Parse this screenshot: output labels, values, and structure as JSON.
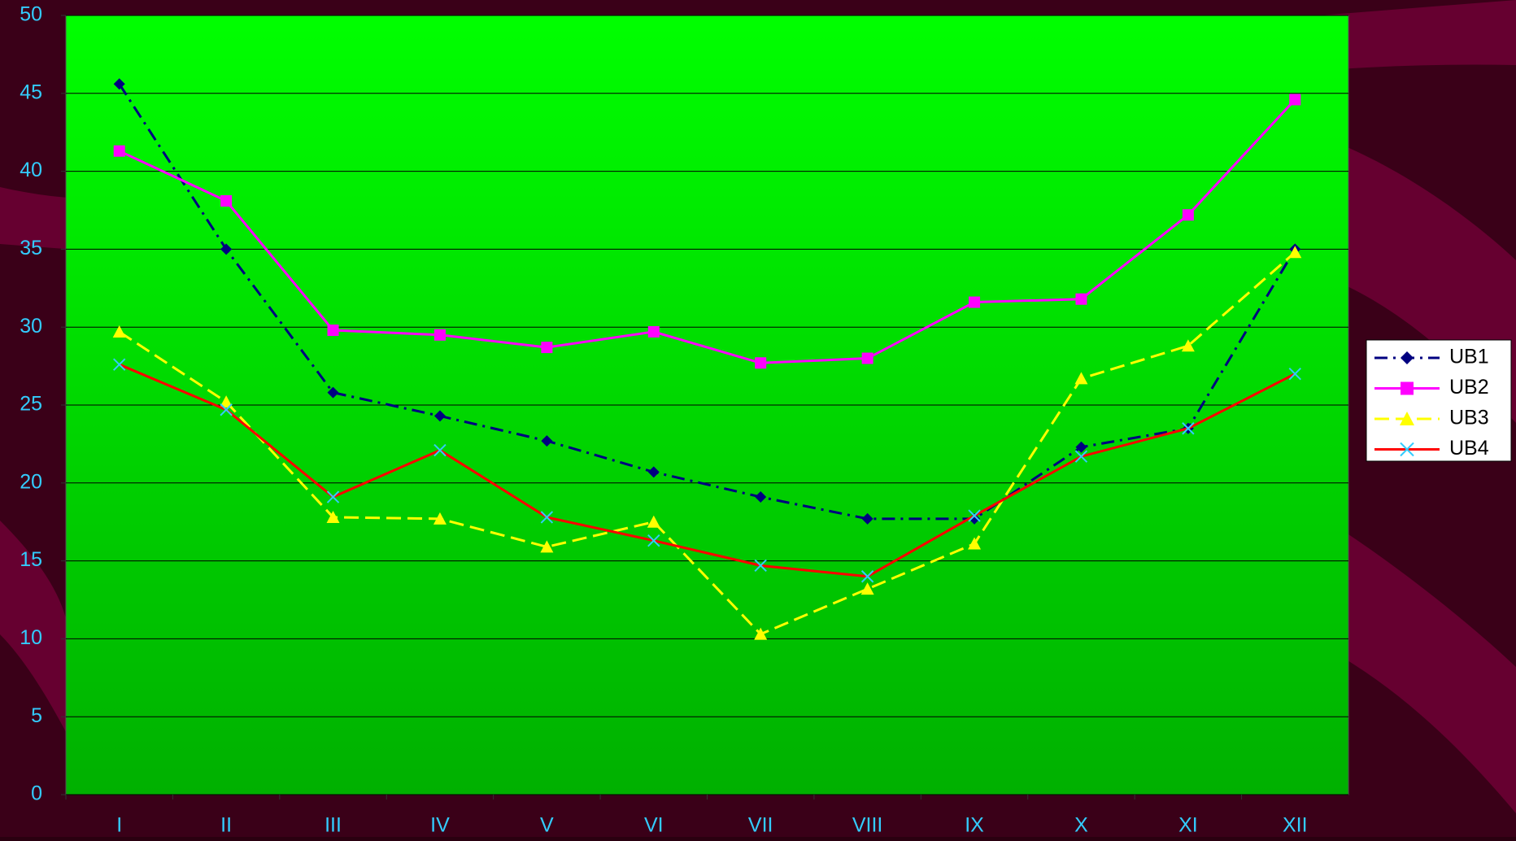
{
  "chart_data": {
    "type": "line",
    "categories": [
      "I",
      "II",
      "III",
      "IV",
      "V",
      "VI",
      "VII",
      "VIII",
      "IX",
      "X",
      "XI",
      "XII"
    ],
    "series": [
      {
        "name": "UB1",
        "color": "#000080",
        "marker": "diamond",
        "dash": "dashdot",
        "values": [
          45.6,
          35.0,
          25.8,
          24.3,
          22.7,
          20.7,
          19.1,
          17.7,
          17.7,
          22.3,
          23.5,
          35.0
        ]
      },
      {
        "name": "UB2",
        "color": "#ff00ff",
        "marker": "square",
        "dash": "solid",
        "values": [
          41.3,
          38.1,
          29.8,
          29.5,
          28.7,
          29.7,
          27.7,
          28.0,
          31.6,
          31.8,
          37.2,
          44.6
        ]
      },
      {
        "name": "UB3",
        "color": "#ffff00",
        "marker": "triangle",
        "dash": "dashed",
        "values": [
          29.7,
          25.2,
          17.8,
          17.7,
          15.9,
          17.5,
          10.3,
          13.2,
          16.1,
          26.7,
          28.8,
          34.8
        ]
      },
      {
        "name": "UB4",
        "color": "#ff0000",
        "marker": "x",
        "marker_color": "#33ccff",
        "dash": "solid",
        "values": [
          27.6,
          24.7,
          19.1,
          22.1,
          17.8,
          16.3,
          14.7,
          14.0,
          17.9,
          21.7,
          23.5,
          27.0
        ]
      }
    ],
    "ylim": [
      0,
      50
    ],
    "yticks": [
      0,
      5,
      10,
      15,
      20,
      25,
      30,
      35,
      40,
      45,
      50
    ],
    "grid": true,
    "legend": "right"
  }
}
